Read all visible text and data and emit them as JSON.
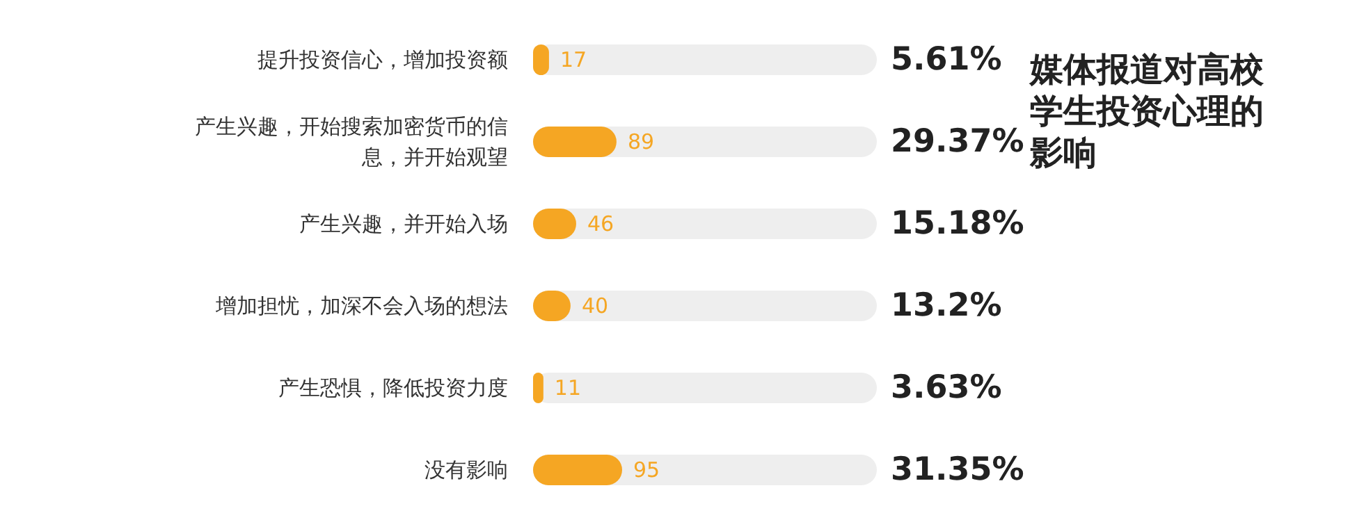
{
  "chart_data": {
    "type": "bar",
    "orientation": "horizontal",
    "title": "媒体报道对高校学生投资心理的影响",
    "categories": [
      "提升投资信心，增加投资额",
      "产生兴趣，开始搜索加密货币的信息，并开始观望",
      "产生兴趣，并开始入场",
      "增加担忧，加深不会入场的想法",
      "产生恐惧，降低投资力度",
      "没有影响"
    ],
    "values": [
      17,
      89,
      46,
      40,
      11,
      95
    ],
    "color": "#f5a623",
    "data_labels": true,
    "annotations": [
      "5.61%",
      "29.37%",
      "15.18%",
      "13.2%",
      "3.63%",
      "31.35%"
    ]
  }
}
